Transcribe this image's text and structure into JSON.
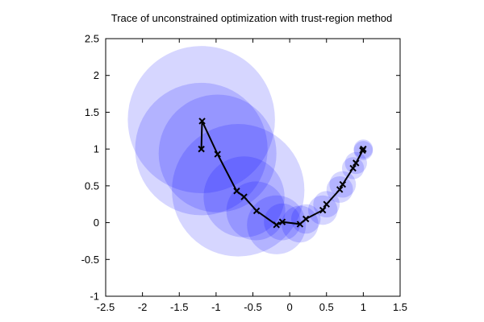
{
  "chart_data": {
    "type": "scatter",
    "title": "Trace of unconstrained optimization with trust-region method",
    "xlim": [
      -2.5,
      1.5
    ],
    "ylim": [
      -1,
      2.5
    ],
    "xticks": [
      -2.5,
      -2,
      -1.5,
      -1,
      -0.5,
      0,
      0.5,
      1,
      1.5
    ],
    "xtick_labels": [
      "-2.5",
      "-2",
      "-1.5",
      "-1",
      "-0.5",
      "0",
      "0.5",
      "1",
      "1.5"
    ],
    "yticks": [
      -1,
      -0.5,
      0,
      0.5,
      1,
      1.5,
      2,
      2.5
    ],
    "ytick_labels": [
      "-1",
      "-0.5",
      "0",
      "0.5",
      "1",
      "1.5",
      "2",
      "2.5"
    ],
    "grid": false,
    "circle_color": "#0000ff",
    "path_color": "#000000",
    "trust_regions": [
      {
        "x": -1.2,
        "y": 1.4,
        "r": 1.0
      },
      {
        "x": -1.2,
        "y": 1.0,
        "r": 0.9
      },
      {
        "x": -0.98,
        "y": 0.94,
        "r": 0.8
      },
      {
        "x": -0.7,
        "y": 0.44,
        "r": 0.9
      },
      {
        "x": -0.62,
        "y": 0.35,
        "r": 0.55
      },
      {
        "x": -0.46,
        "y": 0.16,
        "r": 0.4
      },
      {
        "x": -0.18,
        "y": -0.03,
        "r": 0.4
      },
      {
        "x": -0.1,
        "y": 0.01,
        "r": 0.25
      },
      {
        "x": 0.14,
        "y": -0.02,
        "r": 0.25
      },
      {
        "x": 0.22,
        "y": 0.05,
        "r": 0.2
      },
      {
        "x": 0.45,
        "y": 0.17,
        "r": 0.2
      },
      {
        "x": 0.5,
        "y": 0.25,
        "r": 0.18
      },
      {
        "x": 0.68,
        "y": 0.45,
        "r": 0.18
      },
      {
        "x": 0.72,
        "y": 0.52,
        "r": 0.18
      },
      {
        "x": 0.86,
        "y": 0.74,
        "r": 0.15
      },
      {
        "x": 0.9,
        "y": 0.81,
        "r": 0.15
      },
      {
        "x": 1.0,
        "y": 0.98,
        "r": 0.13
      },
      {
        "x": 1.0,
        "y": 1.0,
        "r": 0.13
      }
    ],
    "iterates": [
      {
        "x": -1.2,
        "y": 1.0
      },
      {
        "x": -1.19,
        "y": 1.38
      },
      {
        "x": -0.98,
        "y": 0.93
      },
      {
        "x": -0.72,
        "y": 0.43
      },
      {
        "x": -0.62,
        "y": 0.35
      },
      {
        "x": -0.45,
        "y": 0.16
      },
      {
        "x": -0.18,
        "y": -0.03
      },
      {
        "x": -0.1,
        "y": 0.01
      },
      {
        "x": 0.14,
        "y": -0.02
      },
      {
        "x": 0.22,
        "y": 0.05
      },
      {
        "x": 0.45,
        "y": 0.17
      },
      {
        "x": 0.5,
        "y": 0.25
      },
      {
        "x": 0.68,
        "y": 0.45
      },
      {
        "x": 0.72,
        "y": 0.52
      },
      {
        "x": 0.86,
        "y": 0.74
      },
      {
        "x": 0.9,
        "y": 0.81
      },
      {
        "x": 0.99,
        "y": 0.98
      },
      {
        "x": 1.0,
        "y": 1.0
      }
    ]
  }
}
